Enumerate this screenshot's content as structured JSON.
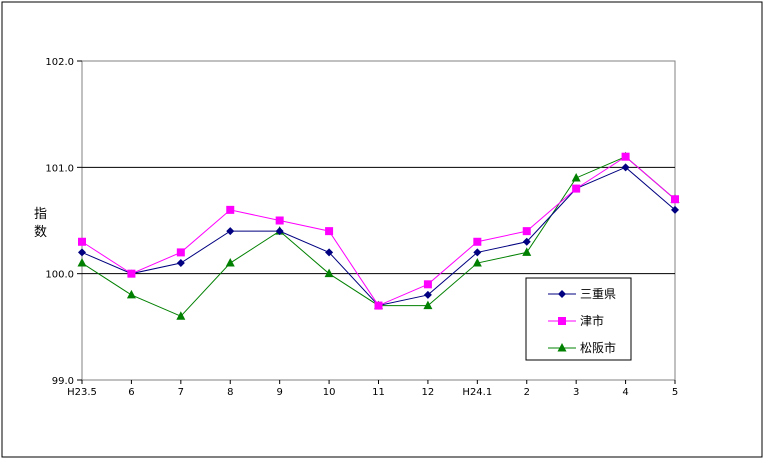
{
  "chart_data": {
    "type": "line",
    "categories": [
      "H23.5",
      "6",
      "7",
      "8",
      "9",
      "10",
      "11",
      "12",
      "H24.1",
      "2",
      "3",
      "4",
      "5"
    ],
    "ylabel": "指数",
    "ylim": [
      99.0,
      102.0
    ],
    "yticks": [
      "99.0",
      "100.0",
      "101.0",
      "102.0"
    ],
    "grid": true,
    "legend_position": "bottom-right",
    "series": [
      {
        "name": "三重県",
        "color": "#000080",
        "marker": "diamond",
        "values": [
          100.2,
          100.0,
          100.1,
          100.4,
          100.4,
          100.2,
          99.7,
          99.8,
          100.2,
          100.3,
          100.8,
          101.0,
          100.6
        ]
      },
      {
        "name": "津市",
        "color": "#ff00ff",
        "marker": "square",
        "values": [
          100.3,
          100.0,
          100.2,
          100.6,
          100.5,
          100.4,
          99.7,
          99.9,
          100.3,
          100.4,
          100.8,
          101.1,
          100.7
        ]
      },
      {
        "name": "松阪市",
        "color": "#008000",
        "marker": "triangle",
        "values": [
          100.1,
          99.8,
          99.6,
          100.1,
          100.4,
          100.0,
          99.7,
          99.7,
          100.1,
          100.2,
          100.9,
          101.1,
          100.7
        ]
      }
    ]
  }
}
